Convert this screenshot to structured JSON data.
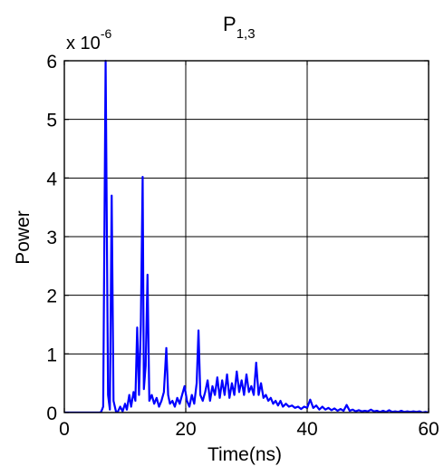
{
  "chart_data": {
    "type": "line",
    "title": "P",
    "title_subscript": "1,3",
    "xlabel": "Time(ns)",
    "ylabel": "Power",
    "y_multiplier": "x 10",
    "y_multiplier_exponent": "-6",
    "xlim": [
      0,
      60
    ],
    "ylim": [
      0,
      6
    ],
    "xticks": [
      "0",
      "20",
      "40",
      "60"
    ],
    "yticks": [
      "0",
      "1",
      "2",
      "3",
      "4",
      "5",
      "6"
    ],
    "grid": true,
    "color": "#0000ff",
    "series": [
      {
        "x": [
          0,
          5.9,
          6.1,
          6.4,
          6.8,
          7.2,
          7.5,
          7.8,
          8.1,
          8.5,
          8.8,
          9.2,
          9.6,
          10.0,
          10.3,
          10.7,
          11.0,
          11.4,
          11.7,
          12.0,
          12.3,
          12.6,
          12.9,
          13.1,
          13.4,
          13.7,
          14.0,
          14.4,
          14.8,
          15.2,
          15.6,
          16.0,
          16.4,
          16.8,
          17.1,
          17.4,
          17.8,
          18.2,
          18.6,
          19.0,
          19.4,
          19.8,
          20.2,
          20.6,
          21.0,
          21.4,
          21.8,
          22.1,
          22.4,
          22.8,
          23.2,
          23.6,
          24.0,
          24.4,
          24.8,
          25.2,
          25.6,
          26.0,
          26.4,
          26.8,
          27.2,
          27.6,
          28.0,
          28.4,
          28.8,
          29.2,
          29.6,
          30.0,
          30.4,
          30.8,
          31.2,
          31.6,
          32.0,
          32.4,
          32.8,
          33.2,
          33.6,
          34.0,
          34.4,
          34.8,
          35.2,
          35.6,
          36.0,
          36.5,
          37.0,
          37.5,
          38.0,
          38.5,
          39.0,
          39.5,
          40.0,
          40.5,
          41.0,
          41.5,
          42.0,
          42.5,
          43.0,
          43.5,
          44.0,
          44.5,
          45.0,
          45.5,
          46.0,
          46.5,
          47.0,
          47.5,
          48.0,
          48.5,
          49.0,
          49.5,
          50.0,
          50.5,
          51.0,
          51.5,
          52.0,
          52.5,
          53.0,
          53.5,
          54.0,
          54.5,
          55.0,
          55.5,
          56.0,
          56.5,
          57.0,
          57.5,
          58.0,
          58.5,
          59.0,
          59.5,
          60.0
        ],
        "y": [
          0,
          0,
          0.02,
          0.1,
          6.0,
          0.3,
          0.05,
          3.7,
          0.2,
          0.02,
          0.01,
          0.1,
          0.02,
          0.15,
          0.05,
          0.3,
          0.1,
          0.35,
          0.2,
          1.45,
          0.3,
          1.5,
          4.02,
          0.4,
          0.8,
          2.35,
          0.2,
          0.3,
          0.15,
          0.25,
          0.1,
          0.2,
          0.35,
          1.1,
          0.3,
          0.15,
          0.2,
          0.1,
          0.25,
          0.15,
          0.3,
          0.45,
          0.2,
          0.1,
          0.3,
          0.15,
          0.5,
          1.4,
          0.3,
          0.2,
          0.35,
          0.55,
          0.2,
          0.45,
          0.3,
          0.6,
          0.25,
          0.55,
          0.3,
          0.65,
          0.25,
          0.5,
          0.3,
          0.7,
          0.35,
          0.55,
          0.3,
          0.65,
          0.35,
          0.45,
          0.3,
          0.85,
          0.3,
          0.5,
          0.25,
          0.3,
          0.2,
          0.25,
          0.15,
          0.2,
          0.12,
          0.2,
          0.1,
          0.15,
          0.1,
          0.12,
          0.08,
          0.1,
          0.06,
          0.1,
          0.08,
          0.22,
          0.08,
          0.12,
          0.05,
          0.1,
          0.05,
          0.08,
          0.04,
          0.07,
          0.03,
          0.06,
          0.03,
          0.13,
          0.03,
          0.05,
          0.02,
          0.04,
          0.02,
          0.03,
          0.02,
          0.05,
          0.02,
          0.03,
          0.01,
          0.03,
          0.01,
          0.04,
          0.01,
          0.02,
          0.01,
          0.03,
          0.01,
          0.02,
          0.01,
          0.02,
          0.01,
          0.02,
          0.0,
          0.01,
          0.0
        ]
      }
    ]
  }
}
